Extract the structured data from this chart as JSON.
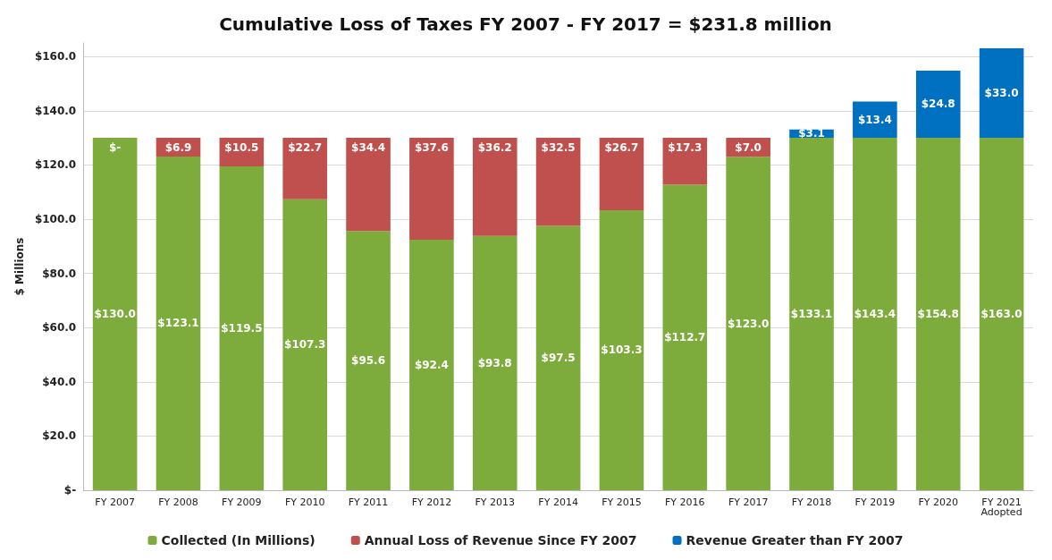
{
  "chart_data": {
    "type": "bar",
    "title": "Cumulative Loss of Taxes FY 2007 - FY 2017 = $231.8 million",
    "ylabel": "$ Millions",
    "categories": [
      "FY 2007",
      "FY 2008",
      "FY 2009",
      "FY 2010",
      "FY 2011",
      "FY 2012",
      "FY 2013",
      "FY 2014",
      "FY 2015",
      "FY 2016",
      "FY 2017",
      "FY 2018",
      "FY 2019",
      "FY 2020",
      "FY 2021\nAdopted"
    ],
    "stacked": true,
    "series": [
      {
        "name": "Collected (In Millions)",
        "color": "#7dab3c",
        "values": [
          130.0,
          123.1,
          119.5,
          107.3,
          95.6,
          92.4,
          93.8,
          97.5,
          103.3,
          112.7,
          123.0,
          130.0,
          130.0,
          130.0,
          130.0
        ],
        "value_labels": [
          "$130.0",
          "$123.1",
          "$119.5",
          "$107.3",
          "$95.6",
          "$92.4",
          "$93.8",
          "$97.5",
          "$103.3",
          "$112.7",
          "$123.0",
          null,
          null,
          null,
          null
        ]
      },
      {
        "name": "Annual Loss of Revenue Since FY 2007",
        "color": "#c0504d",
        "values": [
          0,
          6.9,
          10.5,
          22.7,
          34.4,
          37.6,
          36.2,
          32.5,
          26.7,
          17.3,
          7.0,
          null,
          null,
          null,
          null
        ],
        "value_labels": [
          "$-",
          "$6.9",
          "$10.5",
          "$22.7",
          "$34.4",
          "$37.6",
          "$36.2",
          "$32.5",
          "$26.7",
          "$17.3",
          "$7.0",
          null,
          null,
          null,
          null
        ]
      },
      {
        "name": "Revenue Greater than FY 2007",
        "color": "#0070c0",
        "values": [
          null,
          null,
          null,
          null,
          null,
          null,
          null,
          null,
          null,
          null,
          null,
          3.1,
          13.4,
          24.8,
          33.0
        ],
        "value_labels": [
          null,
          null,
          null,
          null,
          null,
          null,
          null,
          null,
          null,
          null,
          null,
          "$3.1",
          "$13.4",
          "$24.8",
          "$33.0"
        ]
      }
    ],
    "ylim": [
      0,
      165
    ],
    "yticks": [
      {
        "value": 0,
        "label": "$-"
      },
      {
        "value": 20,
        "label": "$20.0"
      },
      {
        "value": 40,
        "label": "$40.0"
      },
      {
        "value": 60,
        "label": "$60.0"
      },
      {
        "value": 80,
        "label": "$80.0"
      },
      {
        "value": 100,
        "label": "$100.0"
      },
      {
        "value": 120,
        "label": "$120.0"
      },
      {
        "value": 140,
        "label": "$140.0"
      },
      {
        "value": 160,
        "label": "$160.0"
      }
    ],
    "totals": [
      null,
      null,
      null,
      null,
      null,
      null,
      null,
      null,
      null,
      null,
      null,
      "$133.1",
      "$143.4",
      "$154.8",
      "$163.0"
    ],
    "grid": "y",
    "legend": "bottom"
  }
}
